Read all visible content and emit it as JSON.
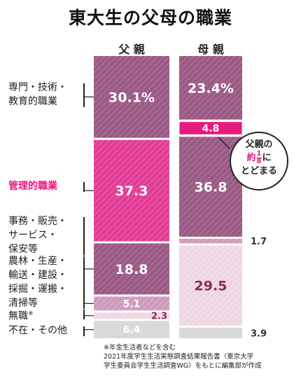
{
  "chart_data": {
    "type": "bar",
    "title": "東大生の父母の職業",
    "categories": [
      "専門・技術・\n教育的職業",
      "管理的職業",
      "事務・販売・\nサービス・\n保安等",
      "農林・生産・\n輸送・建設・\n採掘・運搬・\n清掃等",
      "無職",
      "不在・その他"
    ],
    "series": [
      {
        "name": "父 親",
        "values": [
          30.1,
          37.3,
          18.8,
          5.1,
          2.3,
          6.4
        ]
      },
      {
        "name": "母 親",
        "values": [
          23.4,
          4.8,
          36.8,
          1.7,
          29.5,
          3.9
        ]
      }
    ],
    "value_labels": {
      "father": [
        "30.1%",
        "37.3",
        "18.8",
        "5.1",
        "2.3",
        "6.4"
      ],
      "mother": [
        "23.4%",
        "4.8",
        "36.8",
        "1.7",
        "29.5",
        "3.9"
      ]
    },
    "label_inside": {
      "father": [
        true,
        true,
        true,
        true,
        false,
        true
      ],
      "mother": [
        true,
        true,
        true,
        false,
        true,
        false
      ]
    },
    "unit": "%",
    "stacked": true,
    "ylim": [
      0,
      100
    ],
    "colors": {
      "dark": "#9a5a84",
      "pink": "#e23c95",
      "light": "#edd5e3",
      "mid": "#cf9bbc",
      "gray": "#d9d9d9",
      "outside_label": "#8a2a5c",
      "highlight_text": "#e6197e"
    },
    "segment_fills": [
      "dark",
      "pink",
      "dark",
      "mid",
      "light",
      "gray"
    ],
    "highlight_category_index": 1,
    "label_superscript": {
      "4": "※"
    }
  },
  "callout": {
    "line1": "父親の",
    "approx": "約",
    "fraction_num": "1",
    "fraction_den": "8",
    "particle": "に",
    "line3": "とどまる"
  },
  "footnote": "※年金生活者などを含む\n2021年度学生生活実態調査結果報告書（東京大学\n学生委員会学生生活調査WG）をもとに編集部が作成"
}
